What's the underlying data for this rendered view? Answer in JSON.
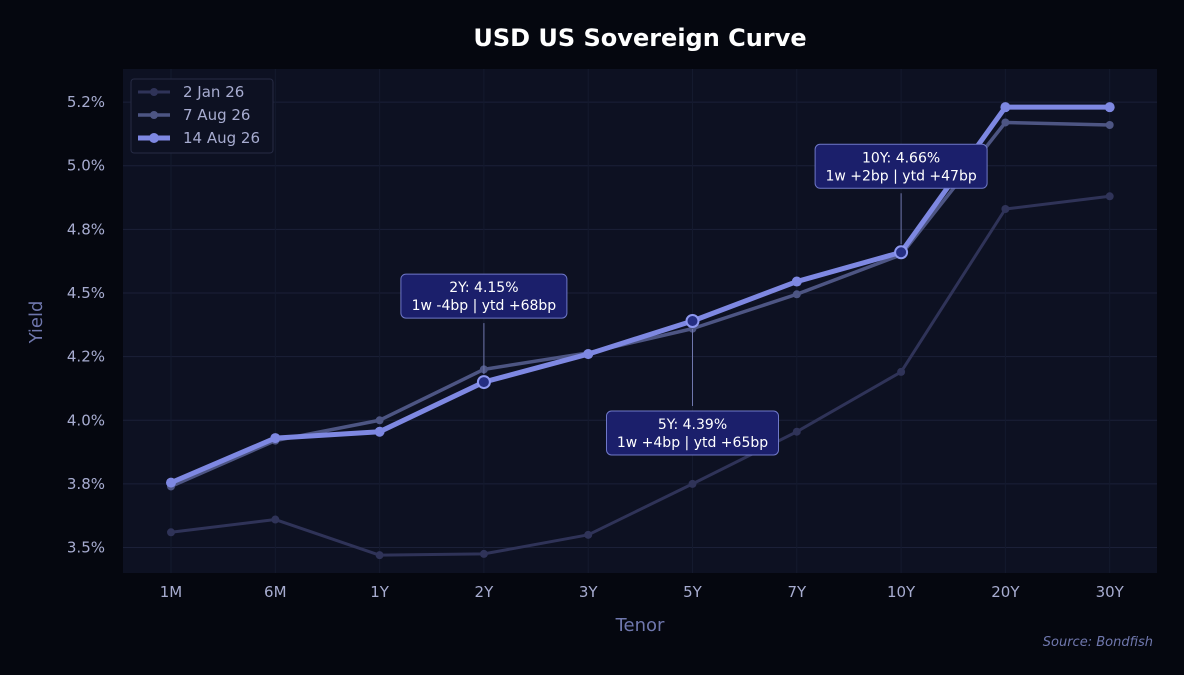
{
  "chart_data": {
    "type": "line",
    "title": "USD US Sovereign Curve",
    "xlabel": "Tenor",
    "ylabel": "Yield",
    "categories": [
      "1M",
      "6M",
      "1Y",
      "2Y",
      "3Y",
      "5Y",
      "7Y",
      "10Y",
      "20Y",
      "30Y"
    ],
    "yticks": [
      3.5,
      3.75,
      4.0,
      4.25,
      4.5,
      4.75,
      5.0,
      5.25
    ],
    "ytick_labels": [
      "3.5%",
      "3.8%",
      "4.0%",
      "4.2%",
      "4.5%",
      "4.8%",
      "5.0%",
      "5.2%"
    ],
    "ylim": [
      3.4,
      5.38
    ],
    "grid": true,
    "legend_position": "top-left",
    "series": [
      {
        "name": "2 Jan 26",
        "color": "#2f3358",
        "values": [
          3.56,
          3.61,
          3.47,
          3.475,
          3.55,
          3.75,
          3.955,
          4.19,
          4.83,
          4.88
        ]
      },
      {
        "name": "7 Aug 26",
        "color": "#4d5583",
        "values": [
          3.74,
          3.92,
          4.0,
          4.2,
          4.265,
          4.36,
          4.495,
          4.65,
          5.17,
          5.16
        ]
      },
      {
        "name": "14 Aug 26",
        "color": "#7e88e2",
        "values": [
          3.755,
          3.93,
          3.955,
          4.15,
          4.26,
          4.39,
          4.545,
          4.66,
          5.23,
          5.23
        ]
      }
    ],
    "annotations": [
      {
        "tenor": "2Y",
        "line1": "2Y: 4.15%",
        "line2": "1w -4bp | ytd +68bp"
      },
      {
        "tenor": "5Y",
        "line1": "5Y: 4.39%",
        "line2": "1w +4bp | ytd +65bp"
      },
      {
        "tenor": "10Y",
        "line1": "10Y: 4.66%",
        "line2": "1w +2bp | ytd +47bp"
      }
    ],
    "source": "Source: Bondfish"
  }
}
